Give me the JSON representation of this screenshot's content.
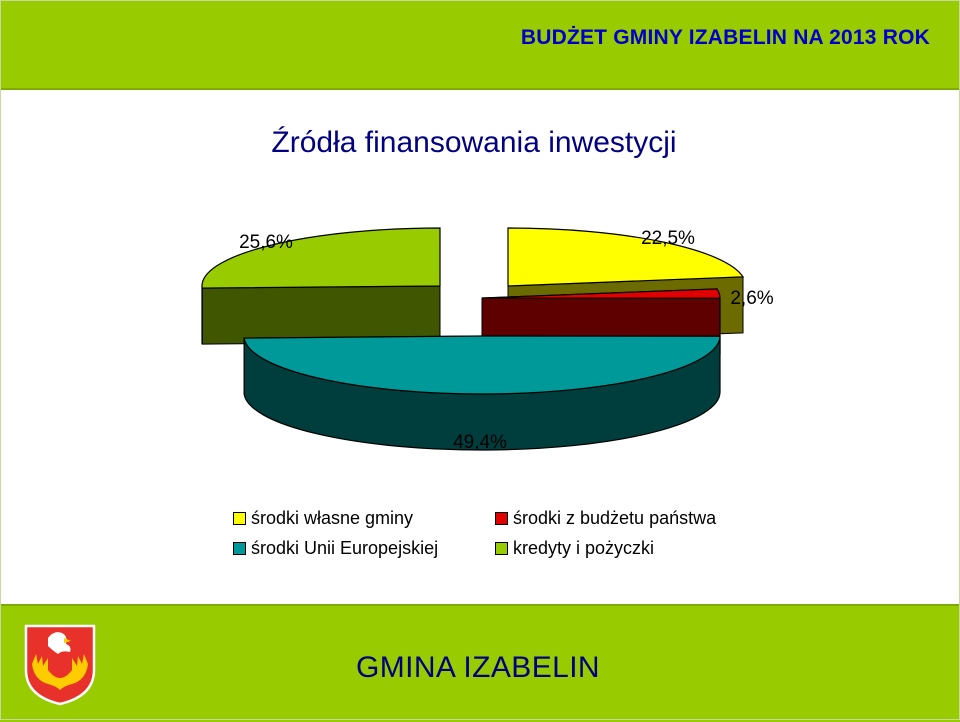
{
  "header": {
    "title": "BUDŻET GMINY IZABELIN NA 2013 ROK"
  },
  "chart_data": {
    "type": "pie",
    "title": "Źródła finansowania inwestycji",
    "three_d": true,
    "exploded": true,
    "legend_position": "bottom",
    "slices": [
      {
        "name": "środki własne gminy",
        "value": 22.5,
        "label": "22,5%",
        "color": "#ffff00"
      },
      {
        "name": "środki z budżetu państwa",
        "value": 2.6,
        "label": "2,6%",
        "color": "#e00000"
      },
      {
        "name": "środki Unii Europejskiej",
        "value": 49.4,
        "label": "49,4%",
        "color": "#009999"
      },
      {
        "name": "kredyty i pożyczki",
        "value": 25.6,
        "label": "25,6%",
        "color": "#99cc00"
      }
    ]
  },
  "footer": {
    "text": "GMINA IZABELIN"
  },
  "colors": {
    "band": "#99cc00",
    "header_text": "#0000cc",
    "title_text": "#000080",
    "crest_red": "#e8312a"
  },
  "icons": {
    "crest": "coat-of-arms-icon"
  }
}
